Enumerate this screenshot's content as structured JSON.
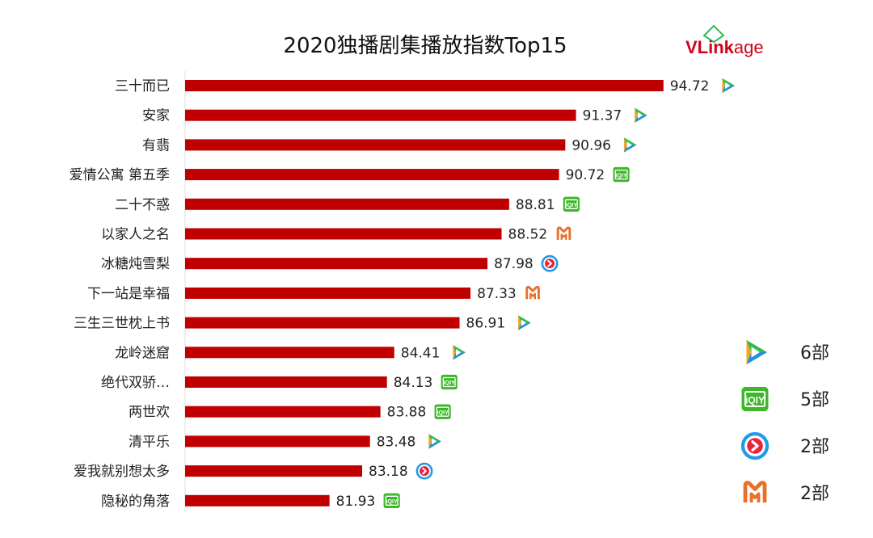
{
  "chart_data": {
    "type": "bar",
    "orientation": "horizontal",
    "title": "2020独播剧集播放指数Top15",
    "categories": [
      "三十而已",
      "安家",
      "有翡",
      "爱情公寓 第五季",
      "二十不惑",
      "以家人之名",
      "冰糖炖雪梨",
      "下一站是幸福",
      "三生三世枕上书",
      "龙岭迷窟",
      "绝代双骄…",
      "两世欢",
      "清平乐",
      "爱我就别想太多",
      "隐秘的角落"
    ],
    "values": [
      94.72,
      91.37,
      90.96,
      90.72,
      88.81,
      88.52,
      87.98,
      87.33,
      86.91,
      84.41,
      84.13,
      83.88,
      83.48,
      83.18,
      81.93
    ],
    "value_labels": [
      "94.72",
      "91.37",
      "90.96",
      "90.72",
      "88.81",
      "88.52",
      "87.98",
      "87.33",
      "86.91",
      "84.41",
      "84.13",
      "83.88",
      "83.48",
      "83.18",
      "81.93"
    ],
    "platforms": [
      "tencent",
      "tencent",
      "tencent",
      "iqiyi",
      "iqiyi",
      "mango",
      "youku",
      "mango",
      "tencent",
      "tencent",
      "iqiyi",
      "iqiyi",
      "tencent",
      "youku",
      "iqiyi"
    ],
    "xlim": [
      76.4,
      95.5
    ],
    "bar_color": "#c00000",
    "grid": false,
    "legend_position": "right"
  },
  "legend": [
    {
      "platform": "tencent",
      "label": "6部"
    },
    {
      "platform": "iqiyi",
      "label": "5部"
    },
    {
      "platform": "youku",
      "label": "2部"
    },
    {
      "platform": "mango",
      "label": "2部"
    }
  ],
  "logo": {
    "text_v": "VL",
    "text_rest": "ink",
    "text_age": "age"
  },
  "colors": {
    "bar": "#c00000",
    "tencent_green": "#2dbb55",
    "tencent_blue": "#1e90e0",
    "tencent_yellow": "#f5a623",
    "iqiyi": "#3cb829",
    "youku": "#1e9be9",
    "youku_red": "#e8233c",
    "mango": "#e8702a"
  }
}
